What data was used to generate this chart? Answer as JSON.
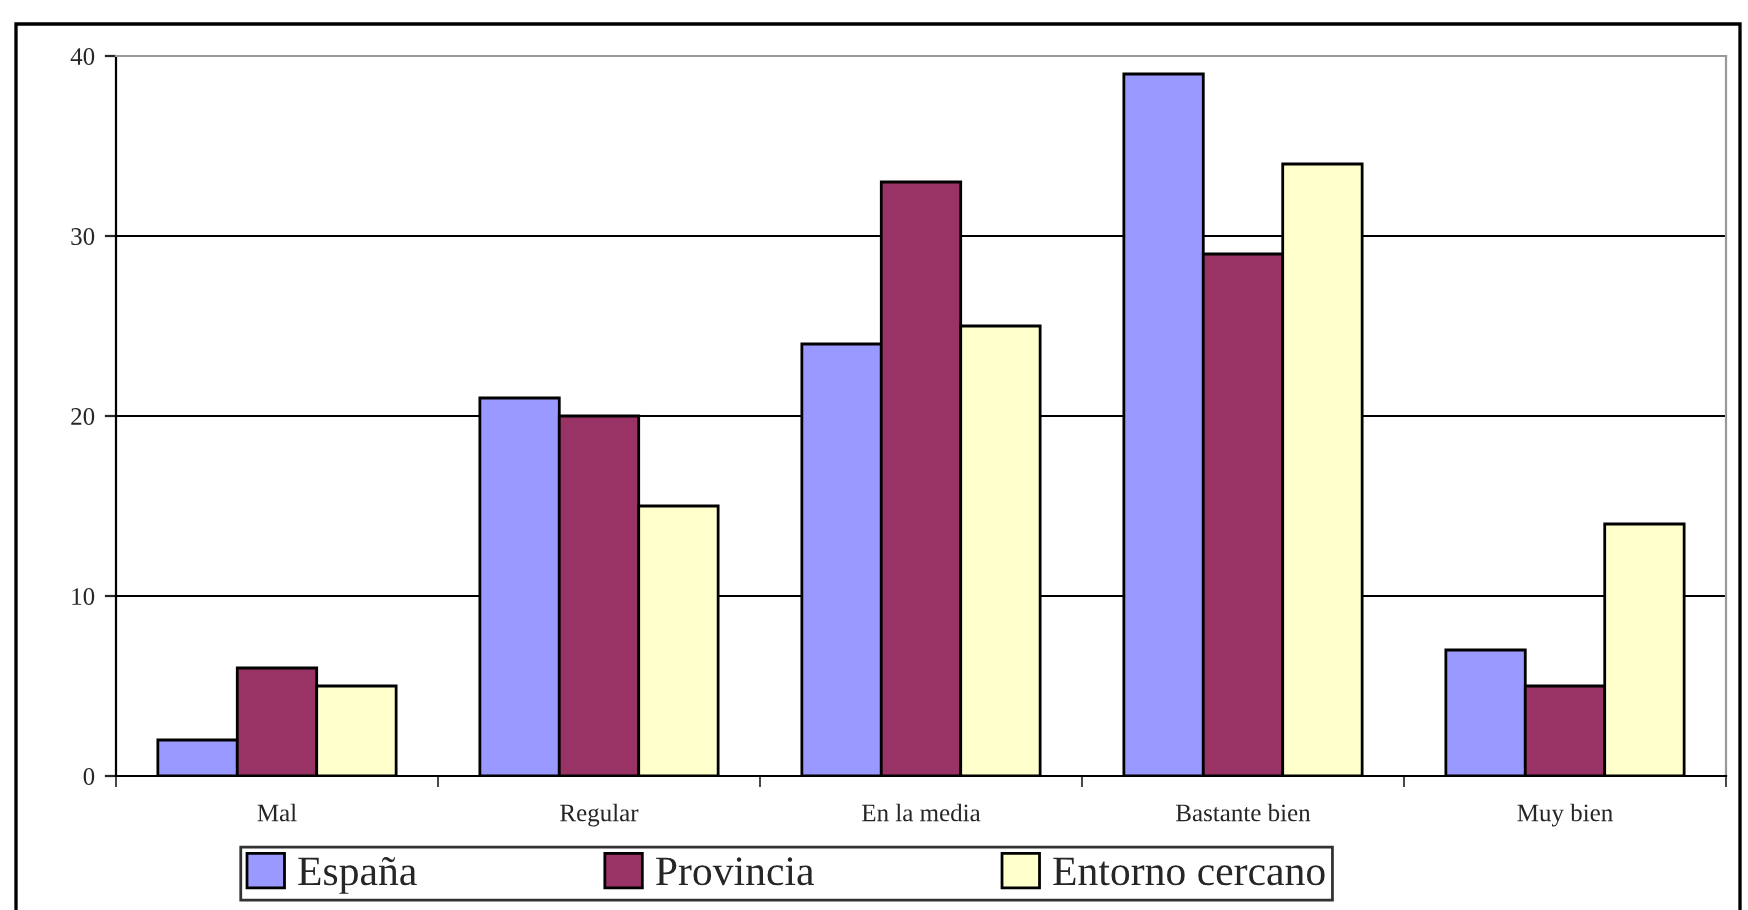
{
  "chart_data": {
    "type": "bar",
    "categories": [
      "Mal",
      "Regular",
      "En la media",
      "Bastante bien",
      "Muy bien"
    ],
    "series": [
      {
        "name": "España",
        "color": "#9999ff",
        "values": [
          2,
          21,
          24,
          39,
          7
        ]
      },
      {
        "name": "Provincia",
        "color": "#993366",
        "values": [
          6,
          20,
          33,
          29,
          5
        ]
      },
      {
        "name": "Entorno cercano",
        "color": "#ffffcc",
        "values": [
          5,
          15,
          25,
          34,
          14
        ]
      }
    ],
    "ylim": [
      0,
      40
    ],
    "yticks": [
      0,
      10,
      20,
      30,
      40
    ],
    "grid": "y",
    "legend": "bottom"
  }
}
